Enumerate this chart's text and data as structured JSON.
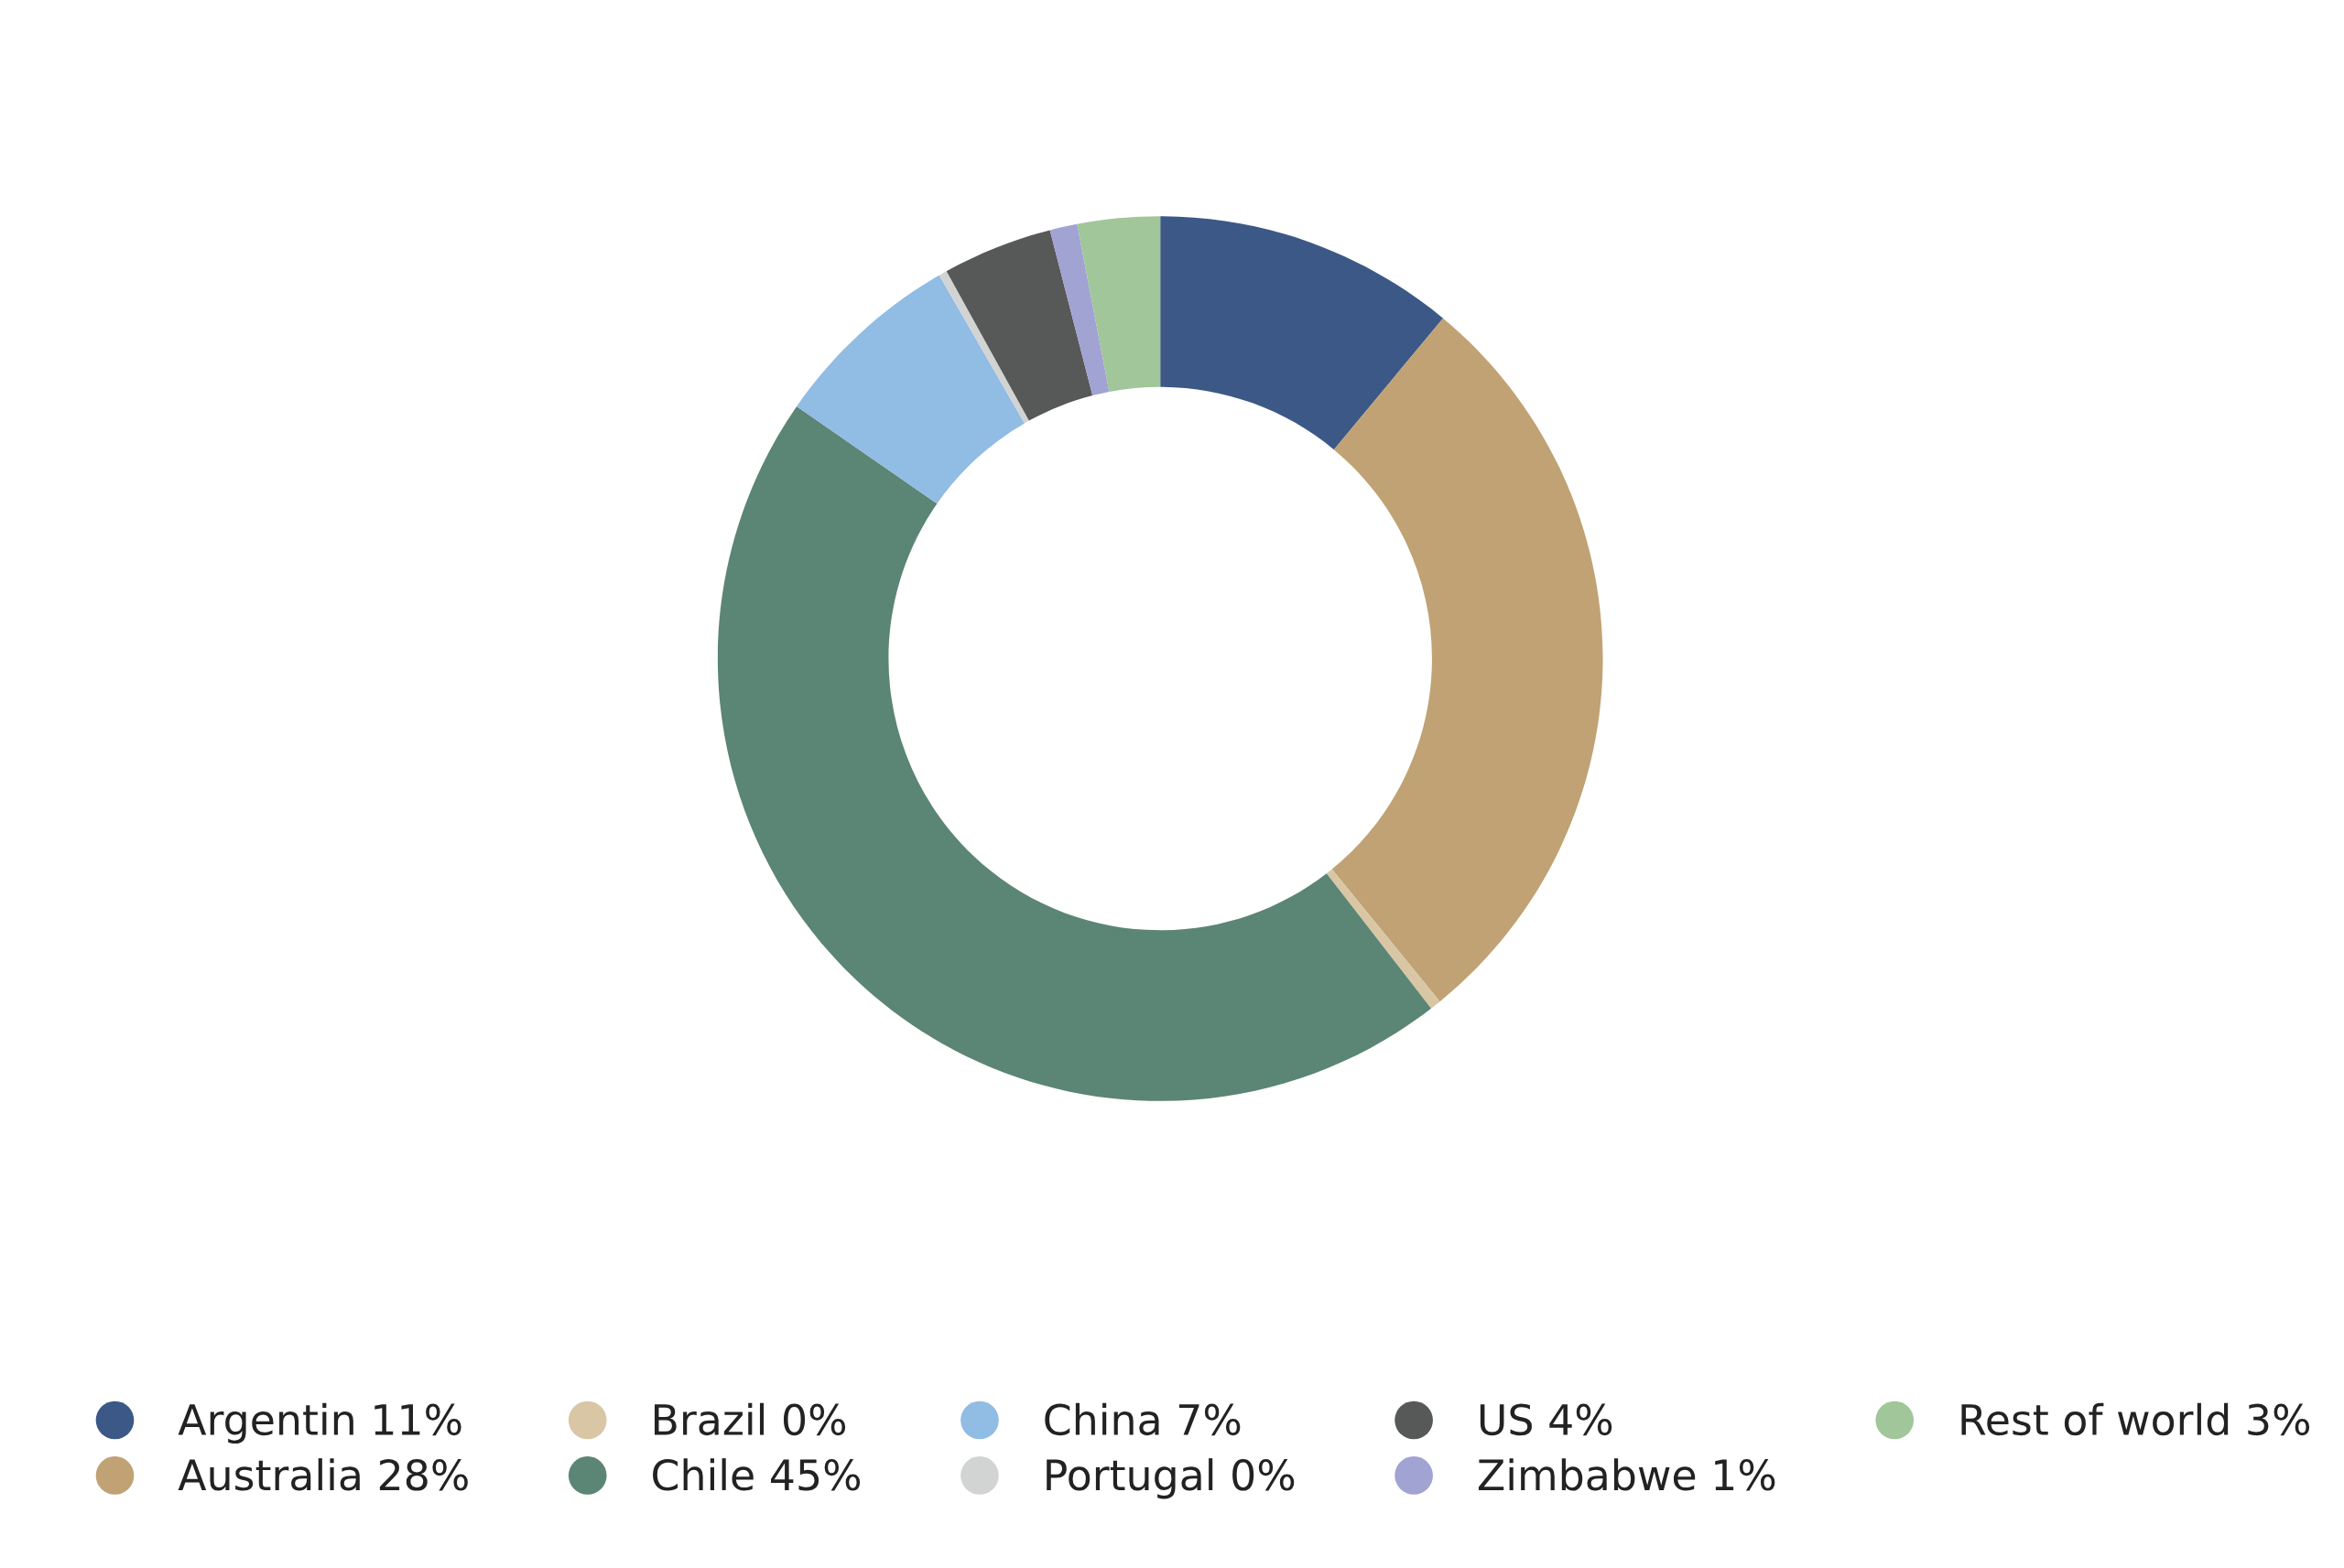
{
  "chart_data": {
    "type": "donut",
    "categories": [
      "Argentin",
      "Australia",
      "Brazil",
      "Chile",
      "China",
      "Portugal",
      "US",
      "Zimbabwe",
      "Rest of world"
    ],
    "values": [
      11,
      28,
      0.4,
      45,
      7,
      0.3,
      4,
      1,
      3
    ],
    "value_labels": [
      "11%",
      "28%",
      "0%",
      "45%",
      "7%",
      "0%",
      "4%",
      "1%",
      "3%"
    ],
    "colors": [
      "#3c5886",
      "#c0a274",
      "#d9c6a5",
      "#5b8574",
      "#91bce3",
      "#d2d3d3",
      "#575858",
      "#a1a3d3",
      "#a1c699"
    ],
    "legend": "bottom"
  }
}
